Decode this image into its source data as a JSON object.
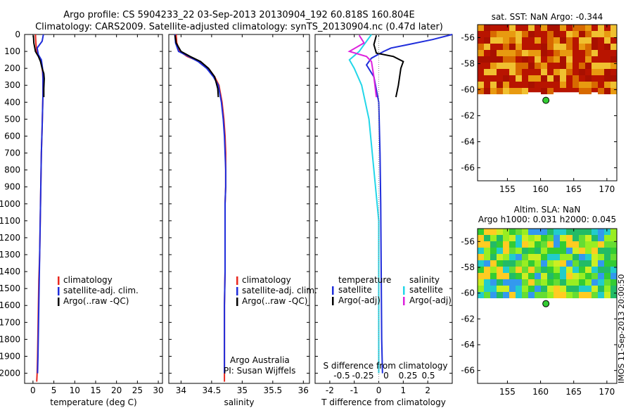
{
  "header": {
    "line1": "Argo profile: CS 5904233_22 03-Sep-2013 20130904_192 60.818S 160.804E",
    "line2": "Climatology: CARS2009. Satellite-adjusted climatology: synTS_20130904.nc (0.47d later)"
  },
  "side_stamp": "IMOS 11-Sep-2013 20:00:50",
  "depth_ticks": [
    0,
    100,
    200,
    300,
    400,
    500,
    600,
    700,
    800,
    900,
    1000,
    1100,
    1200,
    1300,
    1400,
    1500,
    1600,
    1700,
    1800,
    1900,
    2000
  ],
  "colors": {
    "climatology": "#e8271e",
    "satellite": "#1f2ddb",
    "argo": "#000000",
    "salinity_sat": "#22d6e8",
    "salinity_argo": "#dd22dd",
    "sst_field": "#b81400",
    "sla_field": "#33cc33",
    "float_marker": "#33cc33"
  },
  "chart_data": [
    {
      "type": "line",
      "name": "temperature-profile",
      "xlabel": "temperature (deg C)",
      "ylabel": "",
      "xlim": [
        -2,
        31
      ],
      "ylim": [
        2060,
        0
      ],
      "xticks": [
        0,
        5,
        10,
        15,
        20,
        25,
        30
      ],
      "legend": [
        "climatology",
        "satellite-adj. clim.",
        "Argo(..raw -QC)"
      ],
      "legend_position": "lower-right",
      "series": [
        {
          "name": "climatology",
          "color_key": "climatology",
          "x": [
            0.6,
            0.7,
            0.9,
            1.3,
            1.8,
            2.1,
            2.3,
            2.4,
            2.4,
            2.3,
            2.2,
            2.0,
            1.9,
            1.8,
            1.7,
            1.6,
            1.4,
            1.3,
            1.2,
            1.1,
            1.0,
            0.9
          ],
          "y": [
            0,
            50,
            100,
            125,
            150,
            180,
            220,
            270,
            350,
            450,
            550,
            700,
            850,
            1000,
            1150,
            1300,
            1450,
            1600,
            1750,
            1900,
            2000,
            2050
          ]
        },
        {
          "name": "satellite-adj. clim.",
          "color_key": "satellite",
          "x": [
            2.5,
            2.2,
            1.0,
            1.3,
            2.0,
            2.3,
            2.4,
            2.4,
            2.3,
            2.2,
            2.0,
            1.9,
            1.8,
            1.7,
            1.6,
            1.5,
            1.4,
            1.3,
            1.2,
            1.1
          ],
          "y": [
            0,
            40,
            80,
            120,
            150,
            200,
            250,
            350,
            450,
            550,
            700,
            850,
            1000,
            1150,
            1300,
            1450,
            1600,
            1750,
            1900,
            2000
          ]
        },
        {
          "name": "Argo(..raw -QC)",
          "color_key": "argo",
          "x": [
            0.1,
            0.2,
            0.6,
            1.3,
            1.8,
            2.2,
            2.6,
            2.7,
            2.6,
            2.6
          ],
          "y": [
            5,
            50,
            100,
            130,
            160,
            200,
            230,
            260,
            320,
            370
          ]
        }
      ]
    },
    {
      "type": "line",
      "name": "salinity-profile",
      "xlabel": "salinity",
      "ylabel": "",
      "xlim": [
        33.8,
        36.1
      ],
      "ylim": [
        2060,
        0
      ],
      "xticks": [
        34,
        34.5,
        35,
        35.5,
        36
      ],
      "legend": [
        "climatology",
        "satellite-adj. clim.",
        "Argo(..raw -QC)"
      ],
      "legend_position": "lower-right",
      "annotation": [
        "Argo Australia",
        "PI: Susan Wijffels"
      ],
      "series": [
        {
          "name": "climatology",
          "color_key": "climatology",
          "x": [
            33.92,
            33.93,
            33.98,
            34.1,
            34.3,
            34.45,
            34.55,
            34.62,
            34.67,
            34.7,
            34.72,
            34.73,
            34.73,
            34.73,
            34.72,
            34.72,
            34.72,
            34.71,
            34.71,
            34.71,
            34.71
          ],
          "y": [
            0,
            50,
            100,
            130,
            160,
            200,
            250,
            300,
            400,
            500,
            600,
            700,
            800,
            900,
            1000,
            1200,
            1400,
            1600,
            1800,
            2000,
            2050
          ]
        },
        {
          "name": "satellite-adj. clim.",
          "color_key": "satellite",
          "x": [
            33.9,
            33.91,
            33.96,
            34.1,
            34.28,
            34.42,
            34.53,
            34.61,
            34.66,
            34.69,
            34.71,
            34.72,
            34.73,
            34.73,
            34.72,
            34.72,
            34.72,
            34.71,
            34.71,
            34.71
          ],
          "y": [
            0,
            50,
            100,
            125,
            160,
            200,
            250,
            300,
            400,
            500,
            600,
            700,
            800,
            900,
            1000,
            1200,
            1400,
            1600,
            1800,
            2000
          ]
        },
        {
          "name": "Argo(..raw -QC)",
          "color_key": "argo",
          "x": [
            33.9,
            33.92,
            34.0,
            34.15,
            34.32,
            34.45,
            34.55,
            34.6,
            34.61
          ],
          "y": [
            5,
            50,
            100,
            130,
            160,
            200,
            250,
            320,
            370
          ]
        }
      ]
    },
    {
      "type": "line",
      "name": "difference-profile",
      "xlabel": "T difference from climatology",
      "top_xlabel": "S difference from climatology",
      "ylabel": "",
      "xlim": [
        -2.6,
        3.0
      ],
      "ylim": [
        2060,
        0
      ],
      "xticks": [
        -2,
        -1,
        0,
        1,
        2
      ],
      "top_xticks": [
        "-0.5",
        "-0.25",
        "0",
        "0.25",
        "0.5"
      ],
      "legend": [
        "temperature",
        "satellite",
        "Argo(-adj)",
        "salinity",
        "satellite",
        "Argo(-adj)"
      ],
      "legend_position": "lower-center",
      "series": [
        {
          "name": "satellite",
          "group": "temperature",
          "color_key": "satellite",
          "x": [
            3.0,
            2.2,
            1.2,
            0.5,
            0.2,
            -0.3,
            -0.5,
            -0.2,
            0.0,
            0.05,
            0.08,
            0.1,
            0.12,
            0.15
          ],
          "y": [
            0,
            30,
            60,
            80,
            100,
            140,
            180,
            250,
            400,
            700,
            1000,
            1400,
            1800,
            2000
          ]
        },
        {
          "name": "Argo(-adj)",
          "group": "temperature",
          "color_key": "argo",
          "x": [
            -0.1,
            -0.2,
            -0.1,
            0.6,
            1.0,
            0.9,
            0.8,
            0.7
          ],
          "y": [
            5,
            60,
            110,
            130,
            160,
            200,
            300,
            370
          ]
        },
        {
          "name": "satellite",
          "group": "salinity",
          "color_key": "salinity_sat",
          "x": [
            -0.3,
            -0.8,
            -1.2,
            -1.0,
            -0.7,
            -0.4,
            -0.2,
            0.0,
            0.0,
            0.0,
            0.0
          ],
          "y": [
            0,
            100,
            150,
            200,
            300,
            500,
            800,
            1100,
            1500,
            1800,
            2000
          ]
        },
        {
          "name": "Argo(-adj)",
          "group": "salinity",
          "color_key": "salinity_argo",
          "x": [
            -0.8,
            -0.6,
            -1.2,
            -0.5,
            -0.3,
            -0.2,
            -0.1
          ],
          "y": [
            5,
            50,
            100,
            130,
            160,
            250,
            370
          ]
        }
      ]
    },
    {
      "type": "heatmap",
      "name": "sst-map",
      "title": "sat. SST: NaN Argo: -0.344",
      "xlim": [
        150.5,
        171.5
      ],
      "ylim": [
        -67,
        -55
      ],
      "xticks": [
        155,
        160,
        165,
        170
      ],
      "yticks": [
        -56,
        -58,
        -60,
        -62,
        -64,
        -66
      ],
      "field_lat_range": [
        -60.2,
        -55
      ],
      "float_position": {
        "lon": 160.804,
        "lat": -60.818
      }
    },
    {
      "type": "heatmap",
      "name": "sla-map",
      "title": "Altim. SLA: NaN",
      "subtitle": "Argo h1000: 0.031 h2000: 0.045",
      "xlim": [
        150.5,
        171.5
      ],
      "ylim": [
        -67,
        -55
      ],
      "xticks": [
        155,
        160,
        165,
        170
      ],
      "yticks": [
        -56,
        -58,
        -60,
        -62,
        -64,
        -66
      ],
      "field_lat_range": [
        -60.2,
        -55
      ],
      "float_position": {
        "lon": 160.804,
        "lat": -60.818
      }
    }
  ]
}
